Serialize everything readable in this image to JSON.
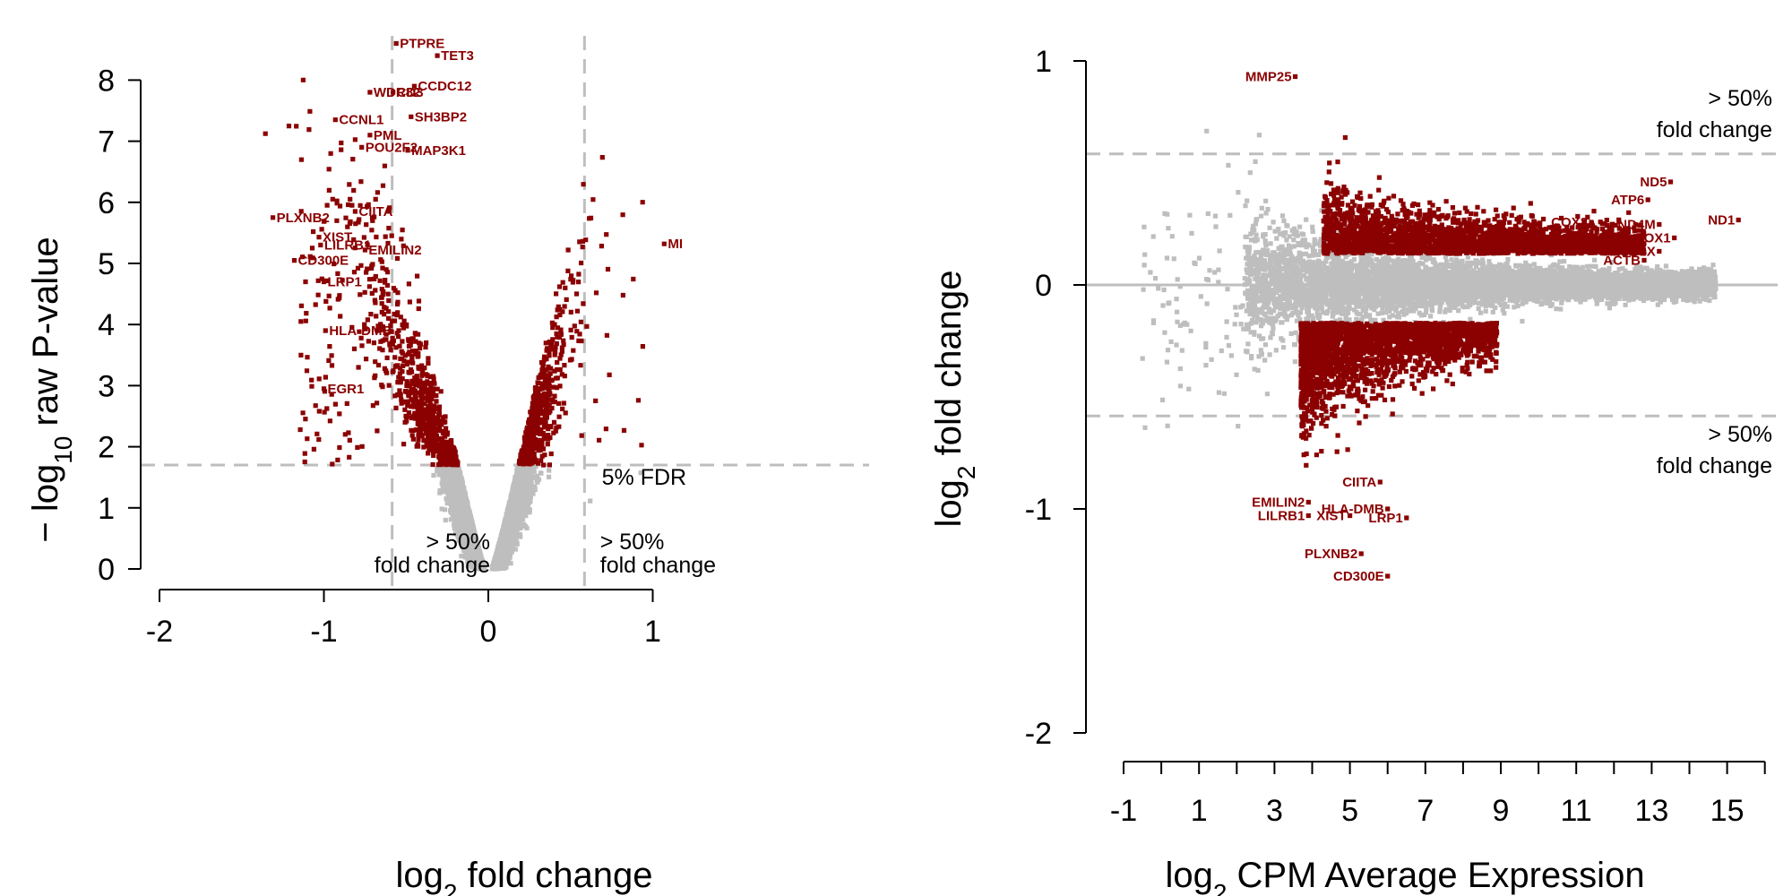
{
  "colors": {
    "significant": "#8b0000",
    "not_significant": "#bebebe",
    "guide": "#bebebe",
    "axis": "#000000"
  },
  "chart_data": [
    {
      "type": "scatter",
      "name": "volcano",
      "title": "",
      "xlabel": {
        "pre": "log",
        "sub": "2",
        "post": " fold change"
      },
      "ylabel": {
        "pre": "− log",
        "sub": "10",
        "post": " raw P-value"
      },
      "xlim": [
        -2,
        1
      ],
      "ylim": [
        0,
        8
      ],
      "xticks": [
        -2,
        -1,
        0,
        1
      ],
      "xtick_labels": [
        "-2",
        "-1",
        "0",
        "1"
      ],
      "yticks": [
        0,
        1,
        2,
        3,
        4,
        5,
        6,
        7,
        8
      ],
      "ytick_labels": [
        "0",
        "1",
        "2",
        "3",
        "4",
        "5",
        "6",
        "7",
        "8"
      ],
      "fdr_threshold": 1.7,
      "fold_change_lines": [
        -0.585,
        0.585
      ],
      "annotations": [
        {
          "id": "fdr",
          "text": "5% FDR",
          "x": 0.69,
          "y": 1.38
        },
        {
          "id": "fc-left-1",
          "text": "> 50%",
          "x": -0.67,
          "y": 0.32
        },
        {
          "id": "fc-left-2",
          "text": "fold change",
          "x": -0.67,
          "y": -0.06
        },
        {
          "id": "fc-right-1",
          "text": "> 50%",
          "x": 0.68,
          "y": 0.32
        },
        {
          "id": "fc-right-2",
          "text": "fold change",
          "x": 0.68,
          "y": -0.06
        }
      ],
      "genes": [
        {
          "label": "PTPRE",
          "x": -0.56,
          "y": 8.6
        },
        {
          "label": "TET3",
          "x": -0.31,
          "y": 8.4
        },
        {
          "label": "CCDC12",
          "x": -0.45,
          "y": 7.9
        },
        {
          "label": "WDR82",
          "x": -0.72,
          "y": 7.8
        },
        {
          "label": "CD3",
          "x": -0.58,
          "y": 7.8
        },
        {
          "label": "SH3BP2",
          "x": -0.47,
          "y": 7.4
        },
        {
          "label": "CCNL1",
          "x": -0.93,
          "y": 7.35
        },
        {
          "label": "PML",
          "x": -0.72,
          "y": 7.1
        },
        {
          "label": "POU2F2",
          "x": -0.77,
          "y": 6.9
        },
        {
          "label": "MAP3K1",
          "x": -0.49,
          "y": 6.85
        },
        {
          "label": "PLXNB2",
          "x": -1.31,
          "y": 5.75
        },
        {
          "label": "CIITA",
          "x": -0.81,
          "y": 5.85
        },
        {
          "label": "XIST",
          "x": -1.03,
          "y": 5.43
        },
        {
          "label": "LILRB1",
          "x": -1.02,
          "y": 5.3
        },
        {
          "label": "EMILIN2",
          "x": -0.75,
          "y": 5.22
        },
        {
          "label": "CD300E",
          "x": -1.18,
          "y": 5.05
        },
        {
          "label": "LRP1",
          "x": -1.0,
          "y": 4.7
        },
        {
          "label": "HLA-DMB",
          "x": -0.99,
          "y": 3.9
        },
        {
          "label": "EGR1",
          "x": -1.0,
          "y": 2.95
        },
        {
          "label": "MI",
          "x": 1.07,
          "y": 5.32
        }
      ]
    },
    {
      "type": "scatter",
      "name": "ma-plot",
      "title": "",
      "xlabel": {
        "pre": "log",
        "sub": "2",
        "post": " CPM Average Expression"
      },
      "ylabel": {
        "pre": "log",
        "sub": "2",
        "post": " fold change"
      },
      "xlim": [
        -1,
        16
      ],
      "ylim": [
        -2,
        1
      ],
      "xticks": [
        -1,
        1,
        3,
        5,
        7,
        9,
        11,
        13,
        15
      ],
      "xtick_labels": [
        "-1",
        "1",
        "3",
        "5",
        "7",
        "9",
        "11",
        "13",
        "15"
      ],
      "xminor_ticks": [
        0,
        2,
        4,
        6,
        8,
        10,
        12,
        14,
        16
      ],
      "yticks": [
        -2,
        -1,
        0,
        1
      ],
      "ytick_labels": [
        "-2",
        "-1",
        "0",
        "1"
      ],
      "fold_change_lines": [
        0.585,
        -0.585
      ],
      "annotations": [
        {
          "id": "fc-top-1",
          "text": "> 50%",
          "x": 14.5,
          "y": 0.8
        },
        {
          "id": "fc-top-2",
          "text": "fold change",
          "x": 14.5,
          "y": 0.66
        },
        {
          "id": "fc-bottom-1",
          "text": "> 50%",
          "x": 14.5,
          "y": -0.7
        },
        {
          "id": "fc-bottom-2",
          "text": "fold change",
          "x": 14.5,
          "y": -0.84
        }
      ],
      "genes": [
        {
          "label": "MMP25",
          "x": 3.55,
          "y": 0.93
        },
        {
          "label": "ND5",
          "x": 13.5,
          "y": 0.46
        },
        {
          "label": "ATP6",
          "x": 12.9,
          "y": 0.38
        },
        {
          "label": "COX2",
          "x": 11.4,
          "y": 0.28
        },
        {
          "label": "ND4M",
          "x": 13.2,
          "y": 0.27
        },
        {
          "label": "ND1",
          "x": 15.3,
          "y": 0.29
        },
        {
          "label": "COX1",
          "x": 13.6,
          "y": 0.21
        },
        {
          "label": "TMSB4X",
          "x": 13.2,
          "y": 0.15
        },
        {
          "label": "ACTB",
          "x": 12.8,
          "y": 0.11
        },
        {
          "label": "CIITA",
          "x": 5.8,
          "y": -0.88
        },
        {
          "label": "EMILIN2",
          "x": 3.9,
          "y": -0.97
        },
        {
          "label": "HLA-DMB",
          "x": 6.0,
          "y": -1.0
        },
        {
          "label": "LILRB1",
          "x": 3.9,
          "y": -1.03
        },
        {
          "label": "XIST",
          "x": 5.0,
          "y": -1.03
        },
        {
          "label": "LRP1",
          "x": 6.5,
          "y": -1.04
        },
        {
          "label": "PLXNB2",
          "x": 5.3,
          "y": -1.2
        },
        {
          "label": "CD300E",
          "x": 6.0,
          "y": -1.3
        }
      ]
    }
  ]
}
